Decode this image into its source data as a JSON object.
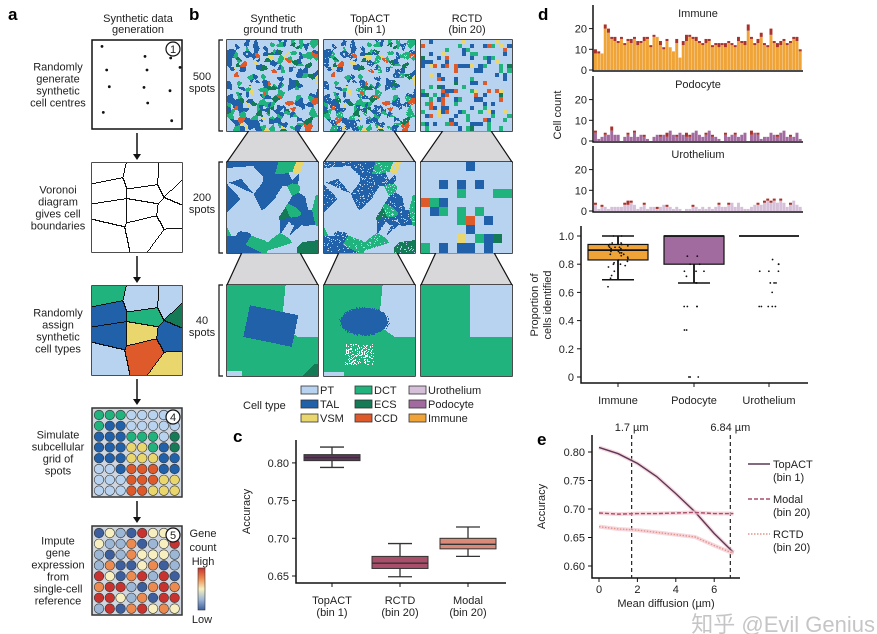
{
  "panel_labels": {
    "a": "a",
    "b": "b",
    "c": "c",
    "d": "d",
    "e": "e"
  },
  "colors": {
    "PT": "#b8d3ef",
    "TAL": "#2161aa",
    "VSM": "#e9d66c",
    "DCT": "#21b37d",
    "ECS": "#157a56",
    "CCD": "#df5a2b",
    "Urothelium": "#d6c0d9",
    "Podocyte": "#a26b9f",
    "Immune": "#f0a337",
    "misassigned": "#a9332c"
  },
  "panel_a": {
    "title_line1": "Synthetic data",
    "title_line2": "generation",
    "steps": [
      {
        "num": "1",
        "lines": [
          "Randomly",
          "generate",
          "synthetic",
          "cell centres"
        ]
      },
      {
        "num": "2",
        "lines": [
          "Voronoi",
          "diagram",
          "gives cell",
          "boundaries"
        ]
      },
      {
        "num": "3",
        "lines": [
          "Randomly",
          "assign",
          "synthetic",
          "cell types"
        ]
      },
      {
        "num": "4",
        "lines": [
          "Simulate",
          "subcellular",
          "grid of",
          "spots"
        ]
      },
      {
        "num": "5",
        "lines": [
          "Impute",
          "gene",
          "expression",
          "from",
          "single-cell",
          "reference"
        ]
      }
    ],
    "gene_count": {
      "line1": "Gene",
      "line2": "count",
      "high": "High",
      "low": "Low"
    }
  },
  "panel_b": {
    "columns": [
      {
        "line1": "Synthetic",
        "line2": "ground truth"
      },
      {
        "line1": "TopACT",
        "line2": "(bin 1)"
      },
      {
        "line1": "RCTD",
        "line2": "(bin 20)"
      }
    ],
    "rows": [
      {
        "n": "500",
        "unit": "spots"
      },
      {
        "n": "200",
        "unit": "spots"
      },
      {
        "n": "40",
        "unit": "spots"
      }
    ]
  },
  "legend": {
    "title": "Cell type",
    "items": [
      "PT",
      "TAL",
      "VSM",
      "DCT",
      "ECS",
      "CCD",
      "Urothelium",
      "Podocyte",
      "Immune"
    ]
  },
  "chart_data": [
    {
      "panel": "c",
      "type": "box",
      "ylabel": "Accuracy",
      "ylim": [
        0.645,
        0.83
      ],
      "yticks": [
        "0.65",
        "0.70",
        "0.75",
        "0.80"
      ],
      "categories": [
        {
          "line1": "TopACT",
          "line2": "(bin 1)"
        },
        {
          "line1": "RCTD",
          "line2": "(bin 20)"
        },
        {
          "line1": "Modal",
          "line2": "(bin 20)"
        }
      ],
      "boxes": [
        {
          "min": 0.794,
          "q1": 0.803,
          "median": 0.807,
          "q3": 0.811,
          "max": 0.821,
          "color": "#5b3857"
        },
        {
          "min": 0.649,
          "q1": 0.66,
          "median": 0.667,
          "q3": 0.676,
          "max": 0.693,
          "color": "#a94f6b"
        },
        {
          "min": 0.676,
          "q1": 0.686,
          "median": 0.692,
          "q3": 0.7,
          "max": 0.715,
          "color": "#d98a78"
        }
      ]
    },
    {
      "panel": "d-top",
      "type": "stacked-bar",
      "ylabel": "Cell count",
      "ylim": [
        0,
        30
      ],
      "yticks": [
        "0",
        "10",
        "20"
      ],
      "series": [
        {
          "title": "Immune",
          "values": [
            8,
            8,
            8,
            20,
            18,
            15,
            14,
            13,
            15,
            12,
            14,
            13,
            15,
            12,
            13,
            14,
            15,
            11,
            16,
            16,
            12,
            10,
            14,
            11,
            9,
            13,
            6,
            12,
            14,
            16,
            15,
            14,
            13,
            12,
            13,
            14,
            11,
            12,
            11,
            12,
            11,
            13,
            12,
            11,
            14,
            13,
            12,
            19,
            15,
            12,
            13,
            16,
            12,
            11,
            17,
            13,
            11,
            12,
            14,
            12,
            13,
            15,
            14,
            9
          ],
          "misassigned": [
            2,
            1,
            0,
            2,
            2,
            1,
            2,
            1,
            1,
            1,
            1,
            2,
            1,
            2,
            1,
            2,
            1,
            1,
            1,
            0,
            2,
            1,
            1,
            0,
            0,
            2,
            0,
            2,
            3,
            1,
            1,
            2,
            1,
            1,
            2,
            1,
            1,
            1,
            2,
            1,
            2,
            1,
            1,
            1,
            2,
            1,
            2,
            3,
            1,
            1,
            2,
            2,
            1,
            1,
            3,
            1,
            2,
            2,
            1,
            1,
            1,
            1,
            2,
            1
          ]
        },
        {
          "title": "Podocyte",
          "values": [
            4,
            1,
            2,
            3,
            3,
            5,
            3,
            3,
            0,
            2,
            3,
            2,
            4,
            2,
            3,
            2,
            1,
            0,
            2,
            3,
            2,
            3,
            2,
            5,
            3,
            2,
            4,
            3,
            2,
            2,
            4,
            5,
            3,
            2,
            3,
            5,
            2,
            2,
            1,
            0,
            3,
            2,
            3,
            3,
            2,
            3,
            4,
            0,
            3,
            4,
            3,
            1,
            2,
            2,
            4,
            3,
            2,
            4,
            5,
            2,
            2,
            2,
            4,
            1
          ],
          "misassigned": [
            1,
            0,
            0,
            1,
            0,
            2,
            0,
            0,
            0,
            0,
            1,
            0,
            1,
            0,
            0,
            1,
            0,
            0,
            0,
            0,
            1,
            0,
            2,
            0,
            0,
            1,
            0,
            0,
            2,
            1,
            0,
            0,
            0,
            0,
            1,
            0,
            1,
            0,
            0,
            0,
            1,
            0,
            0,
            1,
            0,
            0,
            0,
            0,
            2,
            0,
            1,
            0,
            0,
            0,
            0,
            0,
            1,
            0,
            0,
            0,
            1,
            0,
            0,
            0
          ]
        },
        {
          "title": "Urothelium",
          "values": [
            3,
            1,
            2,
            2,
            1,
            2,
            2,
            2,
            2,
            3,
            3,
            4,
            3,
            1,
            2,
            3,
            1,
            2,
            2,
            1,
            2,
            3,
            2,
            2,
            1,
            2,
            1,
            0,
            1,
            1,
            2,
            2,
            1,
            2,
            1,
            2,
            1,
            2,
            3,
            2,
            2,
            3,
            4,
            2,
            4,
            2,
            1,
            1,
            2,
            3,
            3,
            3,
            4,
            5,
            4,
            5,
            4,
            5,
            4,
            2,
            3,
            5,
            3,
            2
          ],
          "misassigned": [
            1,
            0,
            1,
            0,
            0,
            0,
            0,
            0,
            0,
            1,
            2,
            1,
            0,
            0,
            0,
            1,
            0,
            0,
            0,
            1,
            0,
            0,
            1,
            0,
            0,
            0,
            0,
            0,
            0,
            0,
            1,
            0,
            0,
            0,
            0,
            0,
            0,
            0,
            1,
            0,
            0,
            1,
            0,
            0,
            0,
            0,
            0,
            0,
            0,
            0,
            1,
            0,
            1,
            1,
            1,
            1,
            0,
            1,
            0,
            0,
            1,
            0,
            0,
            0
          ]
        }
      ]
    },
    {
      "panel": "d-bottom",
      "type": "box",
      "ylabel_line1": "Proportion of",
      "ylabel_line2": "cells identified",
      "ylim": [
        0,
        1
      ],
      "yticks": [
        "0",
        "0.2",
        "0.4",
        "0.6",
        "0.8",
        "1.0"
      ],
      "categories": [
        "Immune",
        "Podocyte",
        "Urothelium"
      ],
      "boxes": [
        {
          "min": 0.69,
          "q1": 0.83,
          "median": 0.9,
          "q3": 0.94,
          "max": 1.0,
          "color": "#f0a337",
          "points": [
            0.64,
            0.7,
            0.72,
            0.75,
            0.78,
            0.79,
            0.8,
            0.8,
            0.81,
            0.82,
            0.83,
            0.84,
            0.85,
            0.86,
            0.87,
            0.87,
            0.88,
            0.88,
            0.89,
            0.89,
            0.9,
            0.9,
            0.9,
            0.91,
            0.91,
            0.92,
            0.92,
            0.92,
            0.93,
            0.93,
            0.94,
            0.94,
            0.95,
            0.95,
            1.0,
            1.0
          ]
        },
        {
          "min": 0.667,
          "q1": 0.8,
          "median": 1.0,
          "q3": 1.0,
          "max": 1.0,
          "color": "#a26b9f",
          "points": [
            0,
            0,
            0,
            0.333,
            0.333,
            0.5,
            0.5,
            0.5,
            0.5,
            0.667,
            0.667,
            0.714,
            0.75,
            0.75,
            0.75,
            0.8,
            0.8,
            0.857,
            0.857
          ]
        },
        {
          "min": 1.0,
          "q1": 1.0,
          "median": 1.0,
          "q3": 1.0,
          "max": 1.0,
          "color": "#d6c0d9",
          "points": [
            0.5,
            0.5,
            0.5,
            0.5,
            0.5,
            0.6,
            0.667,
            0.667,
            0.667,
            0.75,
            0.75,
            0.75,
            0.8,
            0.8,
            0.833
          ]
        }
      ]
    },
    {
      "panel": "e",
      "type": "line",
      "xlabel": "Mean diffusion (µm)",
      "ylabel": "Accuracy",
      "xlim": [
        -0.3,
        7.2
      ],
      "ylim": [
        0.59,
        0.825
      ],
      "xticks": [
        "0",
        "2",
        "4",
        "6"
      ],
      "yticks": [
        "0.60",
        "0.65",
        "0.70",
        "0.75",
        "0.80"
      ],
      "vlines": [
        {
          "x": 1.7,
          "label": "1.7 µm"
        },
        {
          "x": 6.84,
          "label": "6.84 µm"
        }
      ],
      "x": [
        0,
        1,
        2,
        3,
        4,
        5,
        6,
        7
      ],
      "series": [
        {
          "name": "TopACT",
          "name2": "(bin 1)",
          "values": [
            0.808,
            0.797,
            0.78,
            0.757,
            0.727,
            0.695,
            0.657,
            0.624
          ],
          "color": "#5b3857",
          "dash": "solid"
        },
        {
          "name": "Modal",
          "name2": "(bin 20)",
          "values": [
            0.693,
            0.691,
            0.692,
            0.692,
            0.693,
            0.694,
            0.692,
            0.692
          ],
          "color": "#a94f6b",
          "dash": "dashed"
        },
        {
          "name": "RCTD",
          "name2": "(bin 20)",
          "values": [
            0.669,
            0.665,
            0.663,
            0.659,
            0.655,
            0.651,
            0.636,
            0.622
          ],
          "color": "#e0958a",
          "dash": "dotted"
        }
      ]
    }
  ],
  "watermark": "知乎 @Evil Genius"
}
